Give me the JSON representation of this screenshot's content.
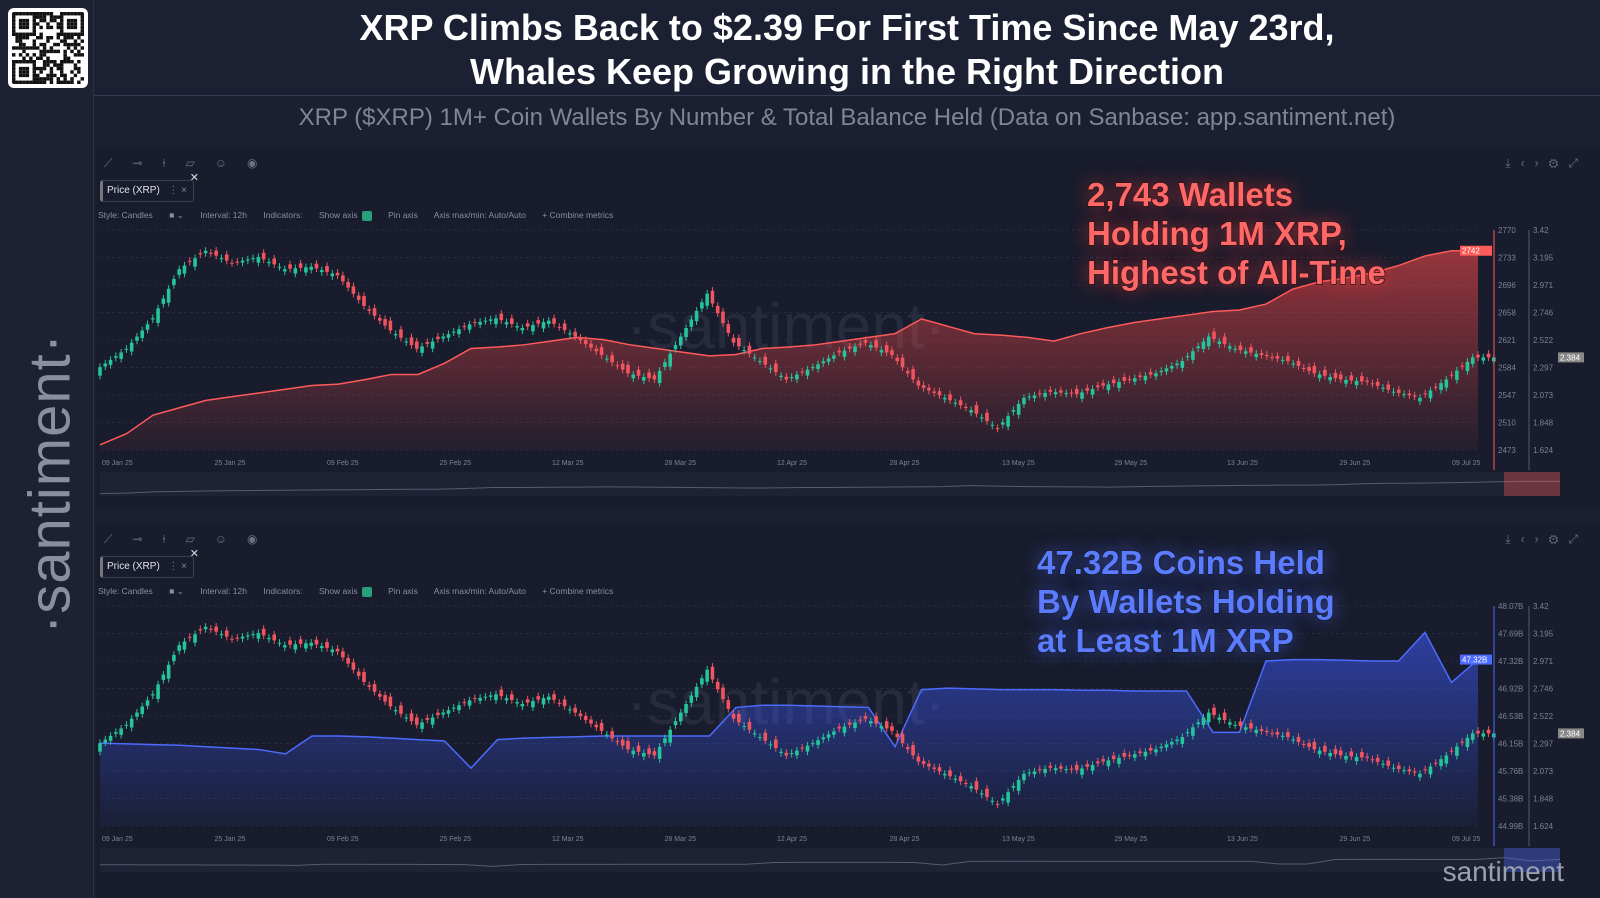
{
  "header": {
    "title_line1": "XRP Climbs Back to $2.39 For First Time Since May 23rd,",
    "title_line2": "Whales Keep Growing in the Right Direction",
    "subtitle": "XRP ($XRP) 1M+ Coin Wallets By Number & Total Balance Held (Data on Sanbase: app.santiment.net)"
  },
  "brand": {
    "logo": "santiment",
    "watermark": "·santiment·"
  },
  "toolbar": {
    "chip_label": "Price (XRP)",
    "style": "Style: Candles",
    "interval": "Interval: 12h",
    "indicators": "Indicators:",
    "show_axis": "Show axis",
    "pin_axis": "Pin axis",
    "axis_minmax": "Axis max/min: Auto/Auto",
    "combine": "+ Combine metrics",
    "icons": [
      "line-tool-icon",
      "horizontal-line-icon",
      "vertical-line-icon",
      "note-icon",
      "emoji-icon",
      "eye-icon"
    ],
    "right_icons": [
      "download-icon",
      "embed-icon",
      "gear-icon",
      "fullscreen-icon"
    ]
  },
  "annotations": {
    "top": [
      "2,743 Wallets",
      "Holding 1M XRP,",
      "Highest of All-Time"
    ],
    "bottom": [
      "47.32B Coins Held",
      "By Wallets Holding",
      "at Least 1M XRP"
    ]
  },
  "chart_data": [
    {
      "type": "line",
      "metric": "Wallets holding 1M+ XRP (count) with XRP price candles",
      "color": "#ff5a5a",
      "x_ticks": [
        "09 Jan 25",
        "25 Jan 25",
        "09 Feb 25",
        "25 Feb 25",
        "12 Mar 25",
        "28 Mar 25",
        "12 Apr 25",
        "28 Apr 25",
        "13 May 25",
        "29 May 25",
        "13 Jun 25",
        "29 Jun 25",
        "09 Jul 25"
      ],
      "y_ticks": [
        "2770",
        "2733",
        "2696",
        "2658",
        "2621",
        "2584",
        "2547",
        "2510",
        "2473"
      ],
      "ylim": [
        2473,
        2770
      ],
      "price_ticks": [
        "3.42",
        "3.195",
        "2.971",
        "2.746",
        "2.522",
        "2.297",
        "2.073",
        "1.848",
        "1.624"
      ],
      "price_lim": [
        1.624,
        3.42
      ],
      "last_value_label": "2742",
      "last_price_label": "2.384",
      "values": [
        2480,
        2495,
        2520,
        2530,
        2540,
        2545,
        2550,
        2555,
        2560,
        2562,
        2568,
        2575,
        2575,
        2590,
        2610,
        2612,
        2615,
        2620,
        2625,
        2622,
        2615,
        2610,
        2605,
        2600,
        2602,
        2610,
        2612,
        2615,
        2620,
        2625,
        2630,
        2650,
        2640,
        2630,
        2628,
        2625,
        2620,
        2630,
        2638,
        2645,
        2650,
        2655,
        2660,
        2662,
        2670,
        2690,
        2700,
        2705,
        2712,
        2722,
        2735,
        2742,
        2742
      ]
    },
    {
      "type": "area",
      "metric": "Total balance of 1M+ XRP wallets (coins)",
      "color": "#4d6bff",
      "x_ticks": [
        "09 Jan 25",
        "25 Jan 25",
        "09 Feb 25",
        "25 Feb 25",
        "12 Mar 25",
        "28 Mar 25",
        "12 Apr 25",
        "28 Apr 25",
        "13 May 25",
        "29 May 25",
        "13 Jun 25",
        "29 Jun 25",
        "09 Jul 25"
      ],
      "y_ticks": [
        "48.07B",
        "47.69B",
        "47.32B",
        "46.92B",
        "46.53B",
        "46.15B",
        "45.76B",
        "45.38B",
        "44.99B"
      ],
      "ylim": [
        44.99,
        48.07
      ],
      "price_ticks": [
        "3.42",
        "3.195",
        "2.971",
        "2.746",
        "2.522",
        "2.297",
        "2.073",
        "1.848",
        "1.624"
      ],
      "price_lim": [
        1.624,
        3.42
      ],
      "last_value_label": "47.32B",
      "last_price_label": "2.384",
      "values": [
        46.15,
        46.14,
        46.13,
        46.12,
        46.1,
        46.08,
        46.06,
        46.0,
        46.25,
        46.25,
        46.24,
        46.22,
        46.2,
        46.18,
        45.8,
        46.2,
        46.22,
        46.23,
        46.24,
        46.25,
        46.25,
        46.25,
        46.25,
        46.25,
        46.65,
        46.68,
        46.68,
        46.67,
        46.66,
        46.65,
        46.1,
        46.9,
        46.92,
        46.91,
        46.9,
        46.9,
        46.9,
        46.89,
        46.89,
        46.88,
        46.88,
        46.88,
        46.3,
        46.3,
        47.3,
        47.32,
        47.32,
        47.31,
        47.3,
        47.3,
        47.7,
        47.0,
        47.32
      ]
    },
    {
      "type": "candlestick",
      "metric": "XRP price (USD), closes",
      "values": [
        2.3,
        2.45,
        2.7,
        3.1,
        3.25,
        3.15,
        3.2,
        3.1,
        3.12,
        3.05,
        2.8,
        2.6,
        2.45,
        2.55,
        2.65,
        2.7,
        2.62,
        2.68,
        2.55,
        2.4,
        2.25,
        2.2,
        2.55,
        2.9,
        2.5,
        2.35,
        2.2,
        2.3,
        2.42,
        2.5,
        2.4,
        2.15,
        2.05,
        1.95,
        1.8,
        2.05,
        2.1,
        2.08,
        2.15,
        2.2,
        2.25,
        2.35,
        2.55,
        2.45,
        2.4,
        2.35,
        2.25,
        2.2,
        2.18,
        2.1,
        2.05,
        2.2,
        2.38
      ]
    }
  ]
}
